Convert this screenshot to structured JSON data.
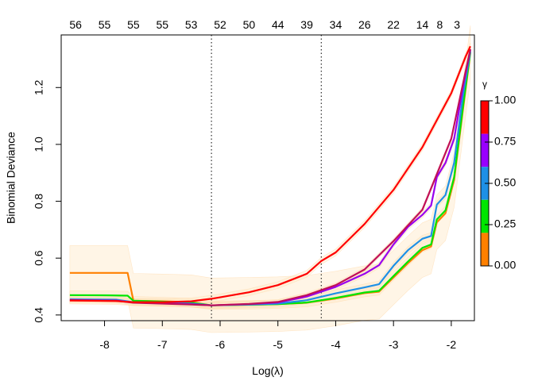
{
  "chart_data": {
    "type": "line",
    "xlabel": "Log(λ)",
    "ylabel": "Binomial Deviance",
    "xlim": [
      -8.75,
      -1.6
    ],
    "ylim": [
      0.38,
      1.385
    ],
    "x_ticks": [
      -8,
      -7,
      -6,
      -5,
      -4,
      -3,
      -2
    ],
    "y_ticks": [
      0.4,
      0.6,
      0.8,
      1.0,
      1.2
    ],
    "top_axis": {
      "positions": [
        -8.5,
        -8.0,
        -7.5,
        -7.0,
        -6.5,
        -6.0,
        -5.5,
        -5.0,
        -4.5,
        -4.0,
        -3.5,
        -3.0,
        -2.5,
        -2.2,
        -1.9
      ],
      "labels": [
        "56",
        "55",
        "55",
        "55",
        "53",
        "52",
        "50",
        "44",
        "39",
        "34",
        "26",
        "22",
        "14",
        "8",
        "3"
      ]
    },
    "vlines": [
      -6.15,
      -4.25
    ],
    "grid": false,
    "series": [
      {
        "color": "#FF8000",
        "x": [
          -8.6,
          -7.75,
          -7.6,
          -7.5,
          -7.0,
          -6.5,
          -6.15,
          -5.5,
          -5.0,
          -4.5,
          -4.0,
          -3.5,
          -3.25,
          -3.0,
          -2.75,
          -2.5,
          -2.35,
          -2.25,
          -2.1,
          -1.95,
          -1.8,
          -1.67
        ],
        "y": [
          0.548,
          0.548,
          0.548,
          0.45,
          0.448,
          0.445,
          0.434,
          0.436,
          0.438,
          0.443,
          0.458,
          0.477,
          0.482,
          0.532,
          0.582,
          0.628,
          0.641,
          0.726,
          0.758,
          0.875,
          1.12,
          1.322
        ],
        "band": 0.096
      },
      {
        "color": "#00E600",
        "x": [
          -8.6,
          -7.9,
          -7.6,
          -7.5,
          -7.0,
          -6.5,
          -6.15,
          -5.5,
          -5.0,
          -4.5,
          -4.0,
          -3.5,
          -3.25,
          -3.0,
          -2.75,
          -2.5,
          -2.35,
          -2.25,
          -2.1,
          -1.95,
          -1.8,
          -1.67
        ],
        "y": [
          0.47,
          0.469,
          0.468,
          0.45,
          0.447,
          0.443,
          0.434,
          0.436,
          0.438,
          0.444,
          0.46,
          0.479,
          0.485,
          0.537,
          0.588,
          0.636,
          0.648,
          0.736,
          0.768,
          0.885,
          1.13,
          1.325
        ],
        "band": 0.015
      },
      {
        "color": "#1E90E6",
        "x": [
          -8.6,
          -7.8,
          -7.5,
          -7.0,
          -6.5,
          -6.15,
          -5.5,
          -5.0,
          -4.5,
          -4.0,
          -3.5,
          -3.25,
          -3.0,
          -2.75,
          -2.5,
          -2.35,
          -2.25,
          -2.1,
          -1.95,
          -1.8,
          -1.67
        ],
        "y": [
          0.455,
          0.454,
          0.445,
          0.443,
          0.44,
          0.434,
          0.437,
          0.44,
          0.452,
          0.476,
          0.497,
          0.508,
          0.573,
          0.628,
          0.668,
          0.678,
          0.788,
          0.822,
          0.935,
          1.17,
          1.328
        ],
        "band": 0.012
      },
      {
        "color": "#9900EE",
        "x": [
          -8.6,
          -7.8,
          -7.5,
          -7.0,
          -6.5,
          -6.15,
          -5.5,
          -5.0,
          -4.5,
          -4.0,
          -3.5,
          -3.25,
          -3.0,
          -2.75,
          -2.5,
          -2.35,
          -2.25,
          -2.1,
          -1.95,
          -1.8,
          -1.67
        ],
        "y": [
          0.453,
          0.451,
          0.444,
          0.441,
          0.438,
          0.434,
          0.438,
          0.444,
          0.465,
          0.499,
          0.545,
          0.575,
          0.648,
          0.71,
          0.752,
          0.785,
          0.885,
          0.935,
          1.02,
          1.2,
          1.333
        ],
        "band": 0.01
      },
      {
        "color": "#C0105A",
        "x": [
          -8.6,
          -7.8,
          -7.5,
          -7.0,
          -6.5,
          -6.15,
          -5.5,
          -5.0,
          -4.5,
          -4.0,
          -3.5,
          -3.0,
          -2.5,
          -2.0,
          -1.67
        ],
        "y": [
          0.452,
          0.45,
          0.443,
          0.44,
          0.437,
          0.434,
          0.439,
          0.446,
          0.47,
          0.505,
          0.56,
          0.66,
          0.77,
          1.02,
          1.335
        ],
        "band": 0.008
      },
      {
        "color": "#FF0000",
        "x": [
          -8.6,
          -7.8,
          -7.5,
          -7.0,
          -6.5,
          -6.15,
          -6.0,
          -5.5,
          -5.0,
          -4.5,
          -4.25,
          -4.0,
          -3.5,
          -3.0,
          -2.5,
          -2.0,
          -1.75,
          -1.67
        ],
        "y": [
          0.451,
          0.449,
          0.445,
          0.445,
          0.448,
          0.457,
          0.462,
          0.48,
          0.505,
          0.545,
          0.59,
          0.62,
          0.72,
          0.84,
          0.99,
          1.18,
          1.31,
          1.345
        ],
        "band": 0.012
      }
    ],
    "legend": {
      "title": "γ",
      "labels": [
        "1.00",
        "0.75",
        "0.50",
        "0.25",
        "0.00"
      ],
      "colors": [
        "#FF0000",
        "#9900FF",
        "#1E90E6",
        "#00E600",
        "#FF8000"
      ]
    }
  }
}
